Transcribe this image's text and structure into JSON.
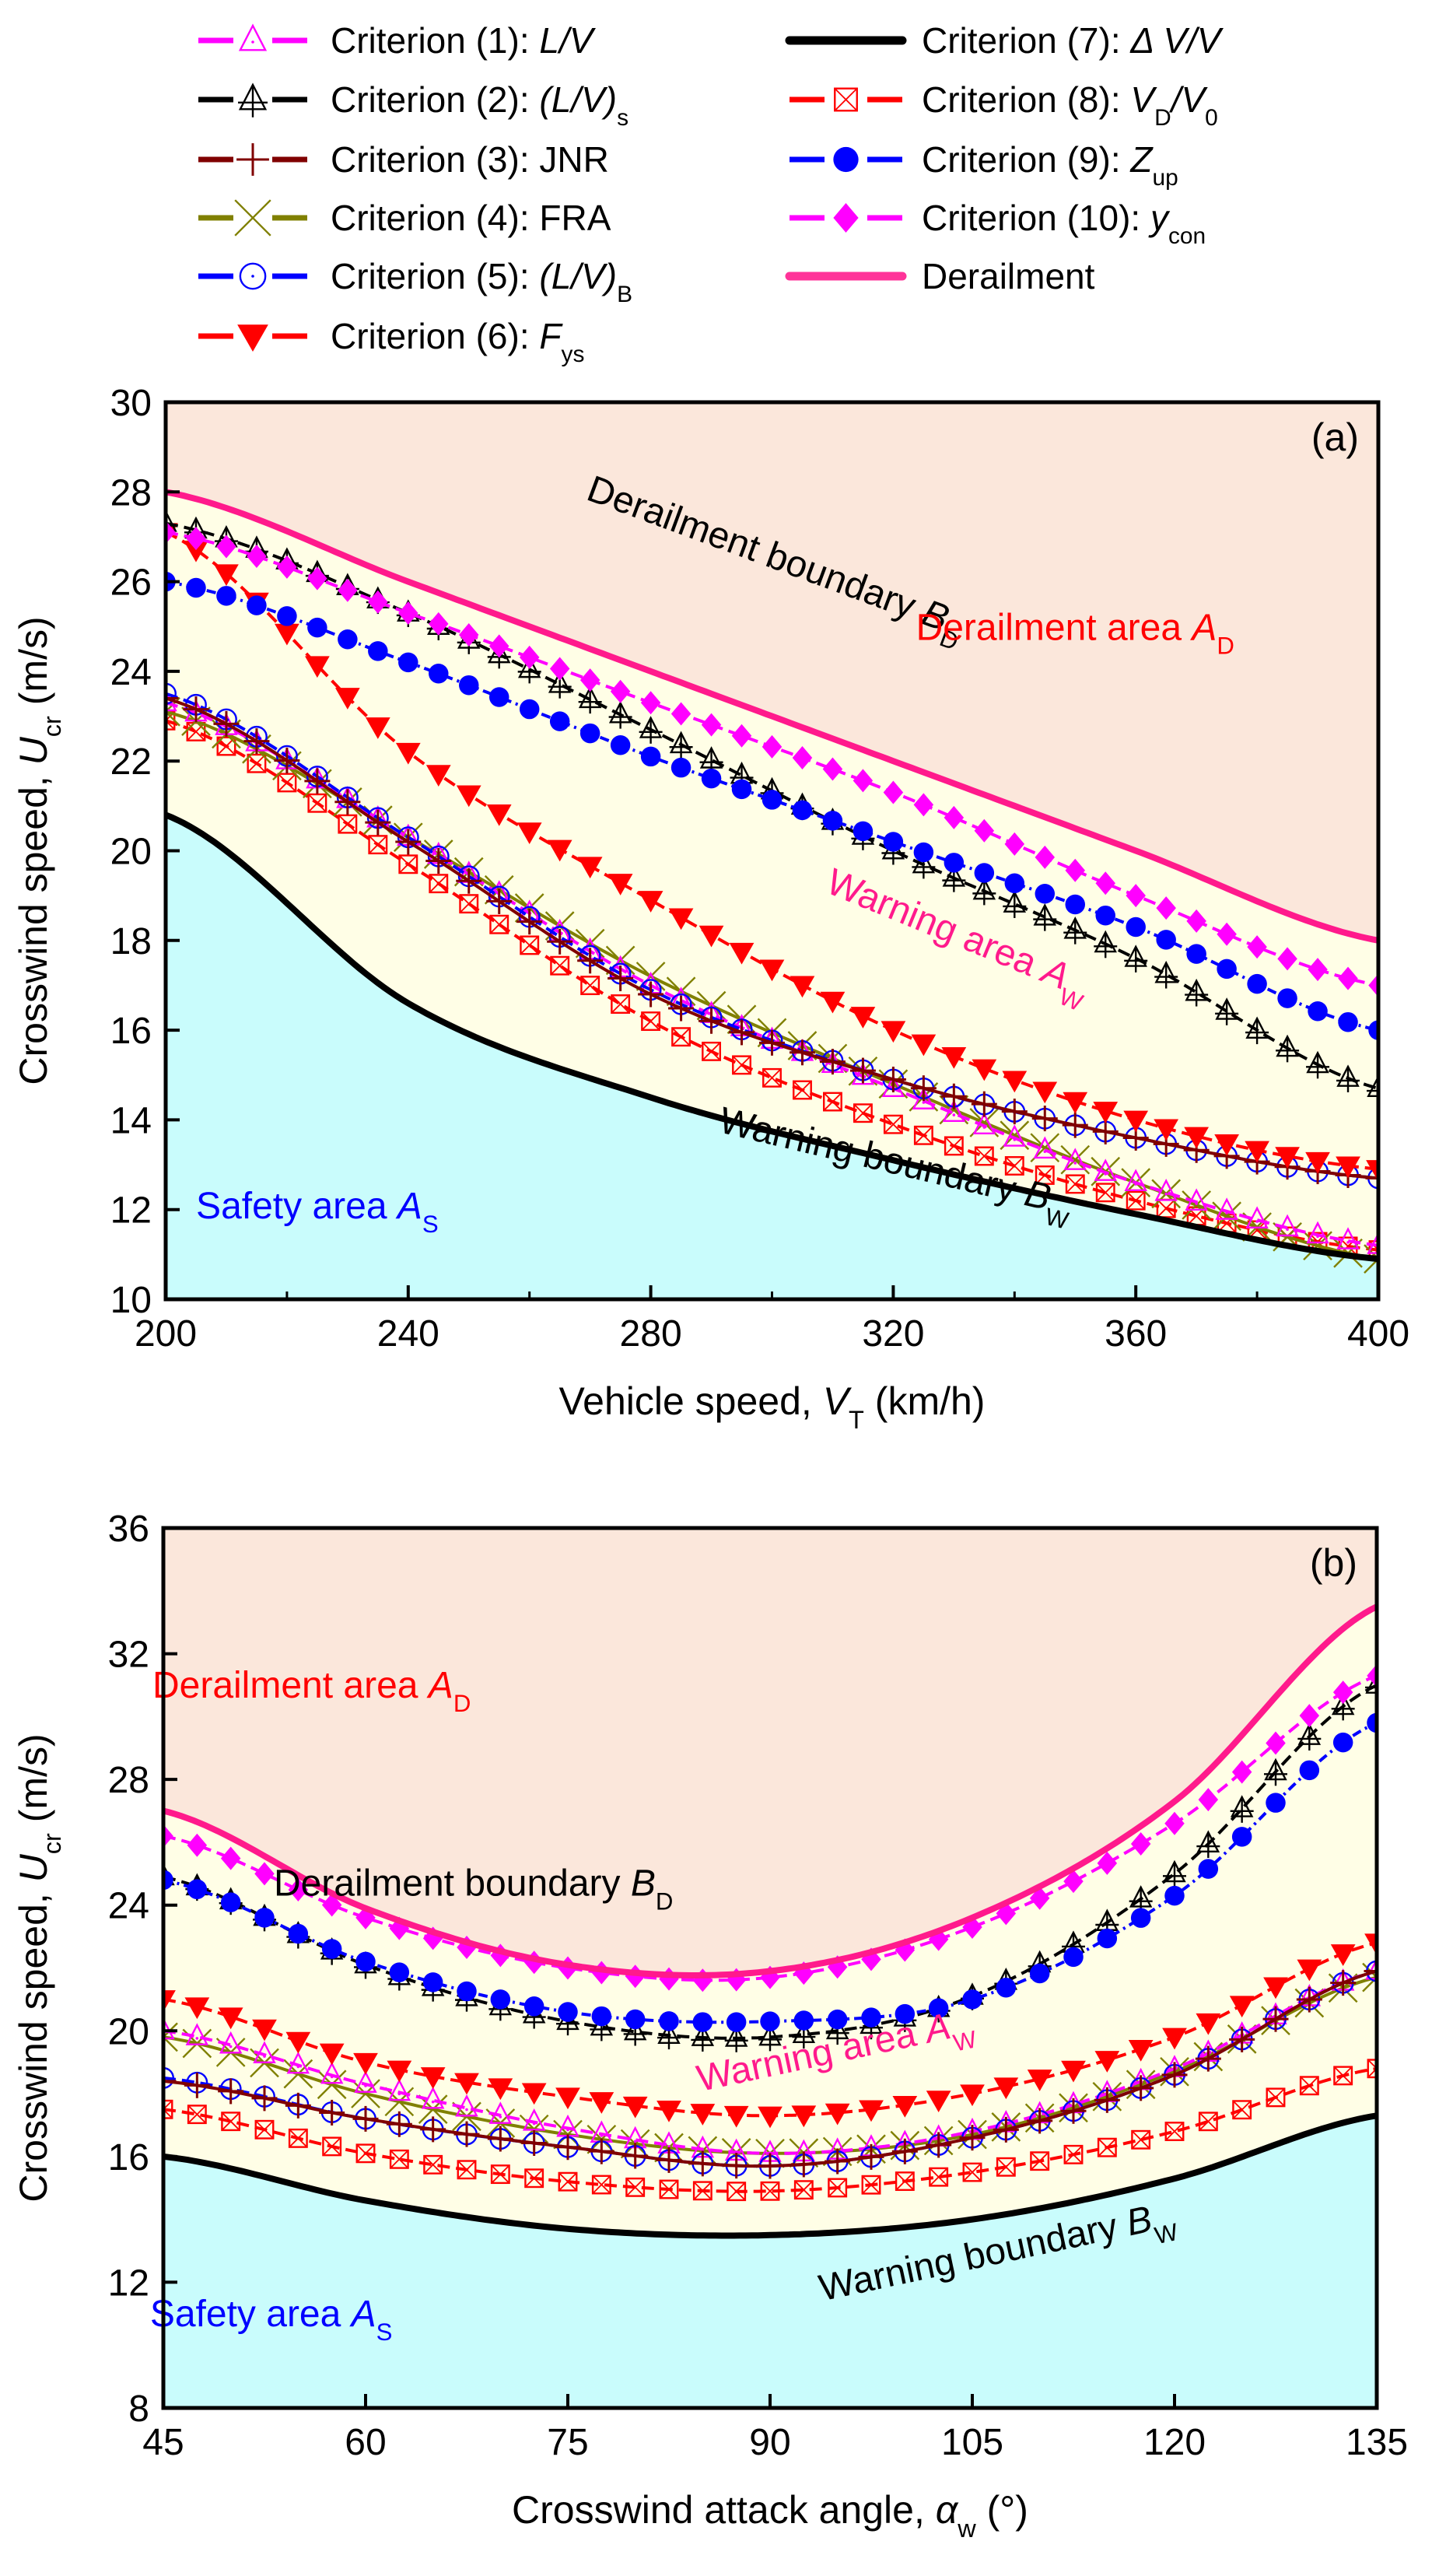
{
  "legend": [
    {
      "id": "c1",
      "prefix": "Criterion (1): ",
      "main": "L/V",
      "italic": true,
      "sub": "",
      "color": "#FF00FF",
      "marker": "triangle-dot",
      "dash": "dash"
    },
    {
      "id": "c2",
      "prefix": "Criterion (2): ",
      "main": "(L/V)",
      "italic": true,
      "sub": "s",
      "color": "#000000",
      "marker": "triangle-cross",
      "dash": "dash"
    },
    {
      "id": "c3",
      "prefix": "Criterion (3): ",
      "main": "JNR",
      "italic": false,
      "sub": "",
      "color": "#800000",
      "marker": "plus",
      "dash": "solid"
    },
    {
      "id": "c4",
      "prefix": "Criterion (4): ",
      "main": "FRA",
      "italic": false,
      "sub": "",
      "color": "#808000",
      "marker": "x",
      "dash": "solid"
    },
    {
      "id": "c5",
      "prefix": "Criterion (5): ",
      "main": "(L/V)",
      "italic": true,
      "sub": "B",
      "color": "#0000FF",
      "marker": "circle-dot",
      "dash": "dash"
    },
    {
      "id": "c6",
      "prefix": "Criterion (6): ",
      "main": "F",
      "italic": true,
      "sub": "ys",
      "color": "#FF0000",
      "marker": "triangle-down",
      "dash": "dash"
    },
    {
      "id": "c7",
      "prefix": "Criterion (7): ",
      "main": "Δ V/V",
      "italic": true,
      "sub": "",
      "color": "#000000",
      "marker": "none",
      "dash": "thick"
    },
    {
      "id": "c8",
      "prefix": "Criterion (8): ",
      "main": "V",
      "italic": true,
      "sub": "D",
      "tail": "/V",
      "tailsub": "0",
      "color": "#FF0000",
      "marker": "square-x",
      "dash": "dash"
    },
    {
      "id": "c9",
      "prefix": "Criterion (9): ",
      "main": "Z",
      "italic": true,
      "sub": "up",
      "color": "#0000FF",
      "marker": "circle",
      "dash": "dashdot"
    },
    {
      "id": "c10",
      "prefix": "Criterion (10): ",
      "main": "y",
      "italic": true,
      "sub": "con",
      "color": "#FF00FF",
      "marker": "diamond",
      "dash": "dash"
    },
    {
      "id": "der",
      "prefix": "Derailment",
      "main": "",
      "italic": false,
      "sub": "",
      "color": "#FF3399",
      "marker": "none",
      "dash": "thick"
    }
  ],
  "colors": {
    "derailment_area": "#FBE7DB",
    "warning_area": "#FFFEE6",
    "safety_area": "#C9FCFC",
    "derailment_line": "#FF1A8C",
    "warning_line": "#000000"
  },
  "chart_data": [
    {
      "type": "line",
      "panel": "(a)",
      "xlabel": "Vehicle speed, ",
      "xlabel_var": "V",
      "xlabel_sub": "T",
      "xlabel_unit": " (km/h)",
      "ylabel": "Crosswind speed, ",
      "ylabel_var": "U",
      "ylabel_sub": "cr",
      "ylabel_unit": " (m/s)",
      "xlim": [
        200,
        400
      ],
      "ylim": [
        10,
        30
      ],
      "xticks": [
        200,
        240,
        280,
        320,
        360,
        400
      ],
      "xminor": [
        220,
        260,
        300,
        340,
        380
      ],
      "yticks": [
        10,
        12,
        14,
        16,
        18,
        20,
        22,
        24,
        26,
        28,
        30
      ],
      "marker_step": 5,
      "x": [
        200,
        240,
        280,
        320,
        360,
        400
      ],
      "series": [
        {
          "id": "c1",
          "values": [
            23.3,
            20.3,
            17.0,
            14.7,
            12.6,
            11.2
          ]
        },
        {
          "id": "c2",
          "values": [
            27.3,
            25.3,
            22.7,
            20.0,
            17.6,
            14.7
          ]
        },
        {
          "id": "c3",
          "values": [
            23.4,
            20.2,
            16.8,
            14.9,
            13.6,
            12.7
          ]
        },
        {
          "id": "c4",
          "values": [
            23.1,
            20.3,
            17.2,
            14.8,
            12.6,
            10.9
          ]
        },
        {
          "id": "c5",
          "values": [
            23.5,
            20.3,
            16.9,
            14.9,
            13.6,
            12.7
          ]
        },
        {
          "id": "c6",
          "values": [
            27.1,
            22.2,
            18.9,
            16.0,
            14.0,
            12.9
          ]
        },
        {
          "id": "c7",
          "values": [
            20.8,
            16.6,
            14.5,
            13.1,
            11.9,
            10.9
          ]
        },
        {
          "id": "c8",
          "values": [
            22.9,
            19.7,
            16.2,
            13.9,
            12.2,
            11.1
          ]
        },
        {
          "id": "c9",
          "values": [
            26.0,
            24.2,
            22.1,
            20.2,
            18.3,
            16.0
          ]
        },
        {
          "id": "c10",
          "values": [
            27.1,
            25.3,
            23.3,
            21.3,
            19.0,
            17.0
          ]
        },
        {
          "id": "der",
          "values": [
            28.0,
            26.0,
            24.0,
            22.0,
            20.0,
            18.0
          ]
        }
      ],
      "annotations": {
        "derailment_boundary": {
          "text": "Derailment boundary ",
          "var": "B",
          "sub": "D",
          "x": 300,
          "y": 26.3
        },
        "derailment_area": {
          "text": "Derailment area ",
          "var": "A",
          "sub": "D",
          "x": 350,
          "y": 24.7
        },
        "warning_area": {
          "text": "Warning area ",
          "var": "A",
          "sub": "W",
          "x": 330,
          "y": 17.9
        },
        "warning_boundary": {
          "text": "Warning boundary ",
          "var": "B",
          "sub": "W",
          "x": 320,
          "y": 12.8
        },
        "safety_area": {
          "text": "Safety area ",
          "var": "A",
          "sub": "S",
          "x": 225,
          "y": 11.8
        }
      }
    },
    {
      "type": "line",
      "panel": "(b)",
      "xlabel": "Crosswind attack angle, ",
      "xlabel_var": "α",
      "xlabel_sub": "w",
      "xlabel_unit": " (°)",
      "ylabel": "Crosswind speed, ",
      "ylabel_var": "U",
      "ylabel_sub": "cr",
      "ylabel_unit": " (m/s)",
      "xlim": [
        45,
        135
      ],
      "ylim": [
        8,
        36
      ],
      "xticks": [
        45,
        60,
        75,
        90,
        105,
        120,
        135
      ],
      "xminor": [],
      "yticks": [
        8,
        12,
        16,
        20,
        24,
        28,
        32,
        36
      ],
      "marker_step": 2.5,
      "x": [
        45,
        60,
        75,
        90,
        105,
        120,
        135
      ],
      "series": [
        {
          "id": "c1",
          "values": [
            20.0,
            18.3,
            16.9,
            16.1,
            16.8,
            18.8,
            21.9
          ]
        },
        {
          "id": "c2",
          "values": [
            24.9,
            22.1,
            20.3,
            19.8,
            21.1,
            25.0,
            31.0
          ]
        },
        {
          "id": "c3",
          "values": [
            18.4,
            17.2,
            16.3,
            15.7,
            16.6,
            18.6,
            21.9
          ]
        },
        {
          "id": "c4",
          "values": [
            19.8,
            18.0,
            16.7,
            16.1,
            16.7,
            18.7,
            21.7
          ]
        },
        {
          "id": "c5",
          "values": [
            18.5,
            17.2,
            16.3,
            15.7,
            16.6,
            18.6,
            21.9
          ]
        },
        {
          "id": "c6",
          "values": [
            21.0,
            19.0,
            17.9,
            17.3,
            18.0,
            19.8,
            22.8
          ]
        },
        {
          "id": "c7",
          "values": [
            16.0,
            14.6,
            13.7,
            13.5,
            14.0,
            15.3,
            17.3
          ]
        },
        {
          "id": "c8",
          "values": [
            17.5,
            16.1,
            15.2,
            14.9,
            15.5,
            16.8,
            18.8
          ]
        },
        {
          "id": "c9",
          "values": [
            24.8,
            22.2,
            20.6,
            20.3,
            21.0,
            24.3,
            29.8
          ]
        },
        {
          "id": "c10",
          "values": [
            26.2,
            23.6,
            22.0,
            21.7,
            23.3,
            26.6,
            31.3
          ]
        },
        {
          "id": "der",
          "values": [
            27.0,
            23.9,
            22.1,
            21.9,
            23.6,
            27.3,
            33.5
          ]
        }
      ],
      "annotations": {
        "derailment_area": {
          "text": "Derailment area ",
          "var": "A",
          "sub": "D",
          "x": 56,
          "y": 30.6
        },
        "derailment_boundary": {
          "text": "Derailment boundary ",
          "var": "B",
          "sub": "D",
          "x": 68,
          "y": 24.3
        },
        "warning_area": {
          "text": "Warning area ",
          "var": "A",
          "sub": "W",
          "x": 95,
          "y": 19.0
        },
        "warning_boundary": {
          "text": "Warning boundary ",
          "var": "B",
          "sub": "W",
          "x": 107,
          "y": 12.6
        },
        "safety_area": {
          "text": "Safety area ",
          "var": "A",
          "sub": "S",
          "x": 53,
          "y": 10.6
        }
      }
    }
  ]
}
